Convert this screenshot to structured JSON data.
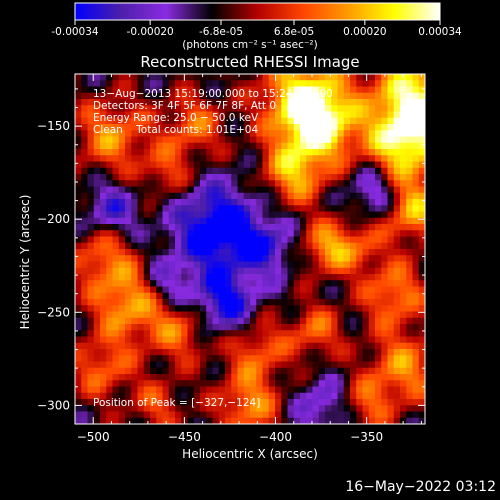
{
  "colorbar": {
    "tick_labels": [
      "-0.00034",
      "-0.00020",
      "-6.8e-05",
      "6.8e-05",
      "0.00020",
      "0.00034"
    ],
    "tick_values": [
      -0.00034,
      -0.0002,
      -6.8e-05,
      6.8e-05,
      0.0002,
      0.00034
    ],
    "range": [
      -0.00034,
      0.00034
    ],
    "units": "(photons cm⁻² s⁻¹ asec⁻²)",
    "colormap_stops": [
      "#0000ff",
      "#4c1faa",
      "#8a2be2",
      "#000000",
      "#b40000",
      "#ff4500",
      "#ff9c00",
      "#ffff00",
      "#ffffff"
    ]
  },
  "chart_data": {
    "type": "heatmap",
    "title": "Reconstructed RHESSI Image",
    "xlabel": "Heliocentric X (arcsec)",
    "ylabel": "Heliocentric Y (arcsec)",
    "xlim": [
      -510,
      -318
    ],
    "ylim": [
      -310,
      -122
    ],
    "xticks": [
      -500,
      -450,
      -400,
      -350
    ],
    "yticks": [
      -300,
      -250,
      -200,
      -150
    ],
    "xtick_labels": [
      "−500",
      "−450",
      "−400",
      "−350"
    ],
    "ytick_labels": [
      "−300",
      "−250",
      "−200",
      "−150"
    ],
    "peak": [
      -327,
      -124
    ],
    "grid": false
  },
  "annotations": {
    "time_range": "13−Aug−2013 15:19:00.000 to 15:24:52.000",
    "detectors": "Detectors: 3F 4F 5F 6F 7F 8F, Att 0",
    "energy": "Energy Range: 25.0 − 50.0 keV",
    "clean": "Clean    Total counts: 1.01E+04",
    "peak_label": "Position of Peak = [−327,−124]"
  },
  "timestamp": "16−May−2022 03:12"
}
